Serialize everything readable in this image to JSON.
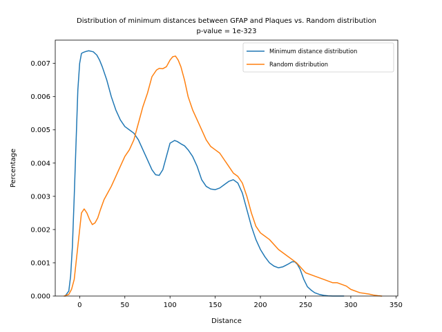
{
  "chart_data": {
    "type": "line",
    "title": "Distribution of minimum distances between GFAP and Plaques vs. Random distribution",
    "subtitle": "p-value = 1e-323",
    "xlabel": "Distance",
    "ylabel": "Percentage",
    "xlim": [
      -27,
      352
    ],
    "ylim": [
      0,
      0.0077
    ],
    "xticks": [
      0,
      50,
      100,
      150,
      200,
      250,
      300,
      350
    ],
    "xtick_labels": [
      "0",
      "50",
      "100",
      "150",
      "200",
      "250",
      "300",
      "350"
    ],
    "yticks": [
      0,
      0.001,
      0.002,
      0.003,
      0.004,
      0.005,
      0.006,
      0.007
    ],
    "ytick_labels": [
      "0.000",
      "0.001",
      "0.002",
      "0.003",
      "0.004",
      "0.005",
      "0.006",
      "0.007"
    ],
    "grid": false,
    "legend_position": "top-right",
    "series": [
      {
        "name": "Minimum distance distribution",
        "color": "#1f77b4",
        "x": [
          -16,
          -12,
          -10,
          -8,
          -6,
          -4,
          -2,
          0,
          2,
          4,
          7,
          10,
          15,
          19,
          22,
          25,
          30,
          35,
          40,
          45,
          50,
          55,
          60,
          65,
          70,
          75,
          80,
          84,
          88,
          92,
          96,
          100,
          105,
          108,
          112,
          116,
          120,
          125,
          130,
          135,
          140,
          145,
          150,
          155,
          160,
          165,
          170,
          175,
          180,
          185,
          190,
          195,
          200,
          205,
          210,
          215,
          220,
          225,
          230,
          235,
          238,
          241,
          244,
          248,
          252,
          256,
          260,
          265,
          270,
          275,
          280,
          285,
          292
        ],
        "y": [
          0.0,
          0.00015,
          0.0006,
          0.0015,
          0.003,
          0.0046,
          0.0062,
          0.007,
          0.0073,
          0.00733,
          0.00736,
          0.00738,
          0.00735,
          0.00725,
          0.0071,
          0.0069,
          0.0065,
          0.006,
          0.0056,
          0.0053,
          0.0051,
          0.005,
          0.0049,
          0.0047,
          0.0044,
          0.0041,
          0.0038,
          0.00365,
          0.00363,
          0.0038,
          0.0042,
          0.0046,
          0.00468,
          0.00465,
          0.00458,
          0.00452,
          0.0044,
          0.0042,
          0.0039,
          0.0035,
          0.0033,
          0.00322,
          0.0032,
          0.00325,
          0.00335,
          0.00345,
          0.0035,
          0.0034,
          0.0031,
          0.0026,
          0.0021,
          0.0017,
          0.0014,
          0.00118,
          0.001,
          0.0009,
          0.00085,
          0.00088,
          0.00095,
          0.00103,
          0.00103,
          0.00095,
          0.0008,
          0.0005,
          0.00028,
          0.00018,
          0.0001,
          5e-05,
          2e-05,
          5e-06,
          0.0,
          0.0,
          0.0
        ]
      },
      {
        "name": "Random distribution",
        "color": "#ff7f0e",
        "x": [
          -17,
          -12,
          -9,
          -6,
          -4,
          -2,
          0,
          2,
          5,
          8,
          11,
          14,
          17,
          20,
          23,
          27,
          31,
          35,
          40,
          45,
          50,
          55,
          60,
          65,
          70,
          75,
          80,
          85,
          88,
          92,
          96,
          100,
          103,
          106,
          109,
          112,
          116,
          120,
          125,
          130,
          135,
          140,
          145,
          150,
          155,
          160,
          165,
          170,
          175,
          180,
          185,
          190,
          195,
          200,
          210,
          220,
          230,
          240,
          250,
          260,
          270,
          280,
          285,
          290,
          295,
          300,
          310,
          320,
          325,
          330,
          334
        ],
        "y": [
          0.0,
          5e-05,
          0.0002,
          0.0005,
          0.001,
          0.0015,
          0.002,
          0.0025,
          0.00262,
          0.0025,
          0.0023,
          0.00215,
          0.0022,
          0.00235,
          0.0026,
          0.0029,
          0.0031,
          0.0033,
          0.0036,
          0.0039,
          0.0042,
          0.0044,
          0.0047,
          0.0052,
          0.0057,
          0.0061,
          0.0066,
          0.0068,
          0.00685,
          0.00684,
          0.0069,
          0.0071,
          0.0072,
          0.00722,
          0.0071,
          0.0069,
          0.0065,
          0.006,
          0.0056,
          0.0053,
          0.005,
          0.0047,
          0.0045,
          0.0044,
          0.0043,
          0.0041,
          0.0039,
          0.0037,
          0.0036,
          0.0034,
          0.003,
          0.0025,
          0.0021,
          0.0019,
          0.0017,
          0.0014,
          0.0012,
          0.001,
          0.0007,
          0.0006,
          0.0005,
          0.0004,
          0.0004,
          0.00035,
          0.0003,
          0.0002,
          0.0001,
          6e-05,
          3e-05,
          1e-05,
          0.0
        ]
      }
    ]
  }
}
